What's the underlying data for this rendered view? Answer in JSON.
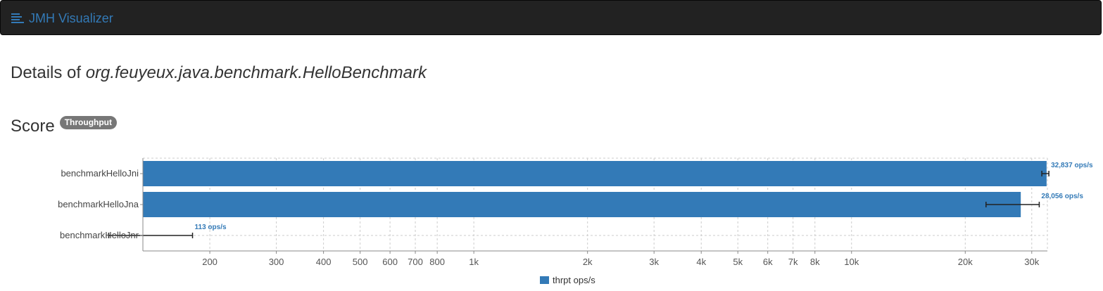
{
  "navbar": {
    "brand": "JMH Visualizer",
    "brand_icon": "list-lines-icon"
  },
  "page": {
    "title_prefix": "Details of",
    "title_class": "org.feuyeux.java.benchmark.HelloBenchmark"
  },
  "score": {
    "heading": "Score",
    "badge": "Throughput"
  },
  "colors": {
    "bar": "#337ab7",
    "navbar_bg": "#222222",
    "badge_bg": "#777777"
  },
  "chart_data": {
    "type": "bar",
    "orientation": "horizontal",
    "x_scale": "log",
    "xlim": [
      133,
      33000
    ],
    "categories": [
      "benchmarkHelloJni",
      "benchmarkHelloJna",
      "benchmarkHelloJnr"
    ],
    "values": [
      32837,
      28056,
      113
    ],
    "error_low": [
      31900,
      22700,
      108
    ],
    "error_high": [
      33300,
      31400,
      180
    ],
    "value_labels": [
      "32,837 ops/s",
      "28,056 ops/s",
      "113 ops/s"
    ],
    "x_ticks": [
      200,
      300,
      400,
      500,
      600,
      700,
      800,
      1000,
      2000,
      3000,
      4000,
      5000,
      6000,
      7000,
      8000,
      10000,
      20000,
      30000
    ],
    "x_tick_labels": [
      "200",
      "300",
      "400",
      "500",
      "600",
      "700",
      "800",
      "1k",
      "2k",
      "3k",
      "4k",
      "5k",
      "6k",
      "7k",
      "8k",
      "10k",
      "20k",
      "30k"
    ],
    "grid": true,
    "legend": [
      "thrpt ops/s"
    ],
    "legend_position": "bottom-center"
  }
}
